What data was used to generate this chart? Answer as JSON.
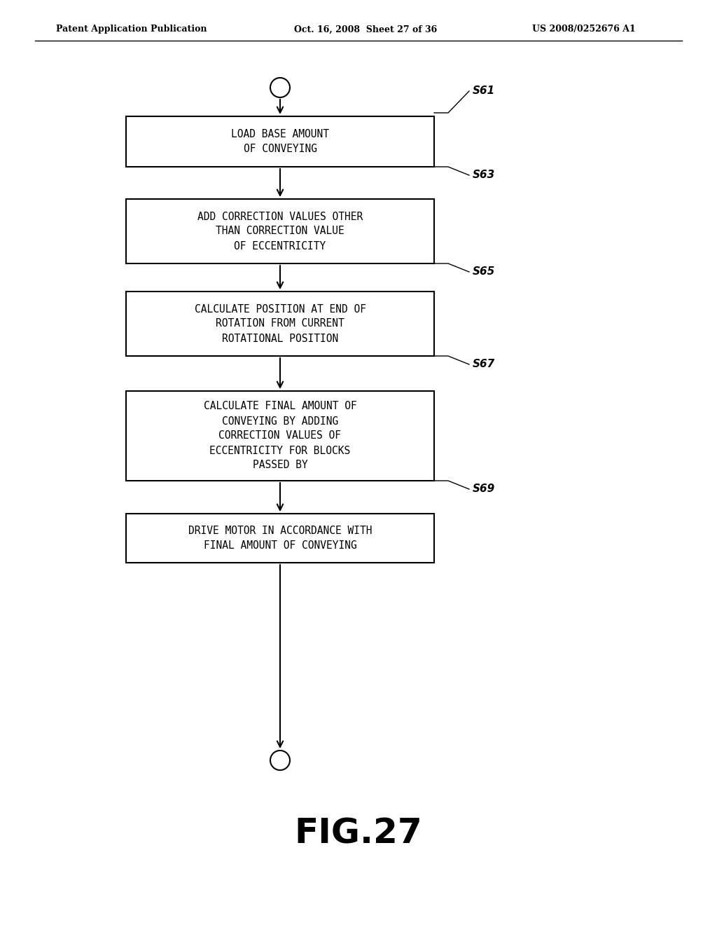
{
  "header_left": "Patent Application Publication",
  "header_mid": "Oct. 16, 2008  Sheet 27 of 36",
  "header_right": "US 2008/0252676 A1",
  "figure_label": "FIG.27",
  "background_color": "#ffffff",
  "box_edge_color": "#000000",
  "box_fill_color": "#ffffff",
  "text_color": "#000000",
  "arrow_color": "#000000",
  "boxes": [
    {
      "label": "S61",
      "text": "LOAD BASE AMOUNT\nOF CONVEYING",
      "step": "S63"
    },
    {
      "label": "S63",
      "text": "ADD CORRECTION VALUES OTHER\nTHAN CORRECTION VALUE\nOF ECCENTRICITY",
      "step": "S65"
    },
    {
      "label": "S65",
      "text": "CALCULATE POSITION AT END OF\nROTATION FROM CURRENT\nROTATIONAL POSITION",
      "step": "S67"
    },
    {
      "label": "S67",
      "text": "CALCULATE FINAL AMOUNT OF\nCONVEYING BY ADDING\nCORRECTION VALUES OF\nECCENTRICITY FOR BLOCKS\nPASSED BY",
      "step": "S69"
    },
    {
      "label": "S69",
      "text": "DRIVE MOTOR IN ACCORDANCE WITH\nFINAL AMOUNT OF CONVEYING",
      "step": null
    }
  ]
}
